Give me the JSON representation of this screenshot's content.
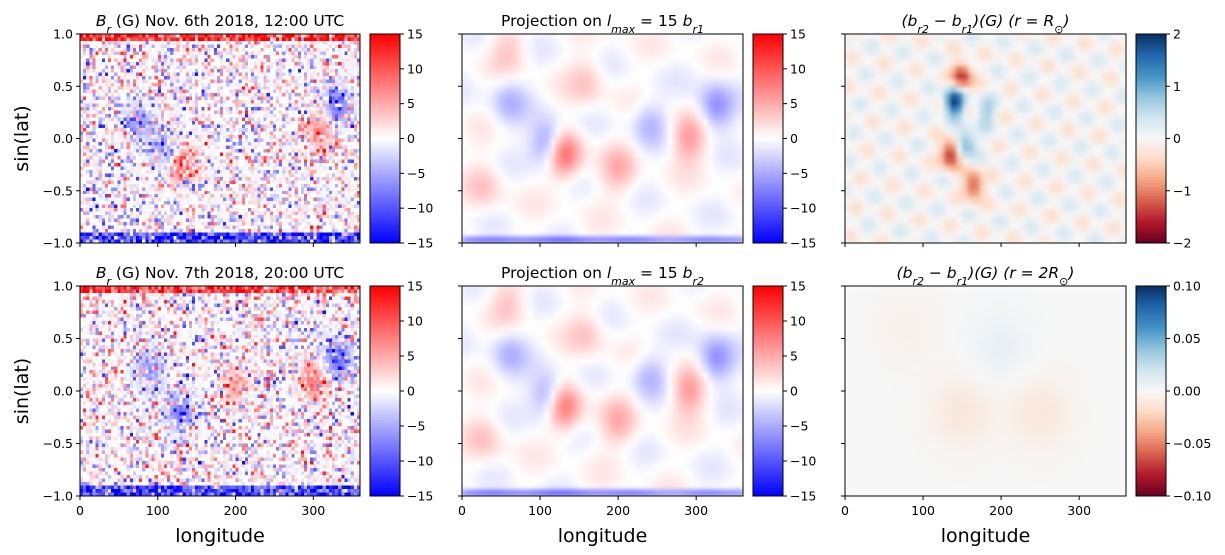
{
  "figure": {
    "description_free": true
  },
  "chart_data": [
    {
      "id": "p11",
      "type": "heatmap",
      "title": "B_r (G) Nov. 6th 2018, 12:00 UTC",
      "title_parts": {
        "sym": "B",
        "sub": "r",
        "rest": " (G) Nov. 6th 2018, 12:00 UTC"
      },
      "xlabel": "",
      "ylabel": "sin(lat)",
      "xlim": [
        0,
        360
      ],
      "ylim": [
        -1.0,
        1.0
      ],
      "xticks": [
        0,
        100,
        200,
        300
      ],
      "xtick_labels": [
        "",
        "",
        "",
        ""
      ],
      "yticks": [
        -1.0,
        -0.5,
        0.0,
        0.5,
        1.0
      ],
      "ytick_labels": [
        "−1.0",
        "−0.5",
        "0.0",
        "0.5",
        "1.0"
      ],
      "colormap": "bwr",
      "colorbar": {
        "range": [
          -15,
          15
        ],
        "ticks": [
          -15,
          -10,
          -5,
          0,
          5,
          10,
          15
        ],
        "tick_labels": [
          "−15",
          "−10",
          "−5",
          "0",
          "5",
          "10",
          "15"
        ]
      },
      "field": "magnetogram",
      "features": [
        {
          "lon": 130,
          "lat": -0.25,
          "amp": 9
        },
        {
          "lon": 110,
          "lat": -0.1,
          "amp": -7
        },
        {
          "lon": 330,
          "lat": 0.3,
          "amp": -9
        },
        {
          "lon": 310,
          "lat": 0.1,
          "amp": 7
        },
        {
          "lon": 75,
          "lat": 0.15,
          "amp": -6
        }
      ]
    },
    {
      "id": "p12",
      "type": "heatmap",
      "title": "Projection on l_max = 15 b_r1",
      "title_parts": {
        "text": "Projection on ",
        "sym": "l",
        "sub": "max",
        "mid": " = 15 ",
        "sym2": "b",
        "sub2": "r1"
      },
      "xlabel": "",
      "ylabel": "",
      "xlim": [
        0,
        360
      ],
      "ylim": [
        -1.0,
        1.0
      ],
      "xticks": [
        0,
        100,
        200,
        300
      ],
      "xtick_labels": [
        "",
        "",
        "",
        ""
      ],
      "yticks": [
        -1.0,
        -0.5,
        0.0,
        0.5,
        1.0
      ],
      "ytick_labels": [
        "",
        "",
        "",
        "",
        ""
      ],
      "colormap": "bwr",
      "colorbar": {
        "range": [
          -15,
          15
        ],
        "ticks": [
          -15,
          -10,
          -5,
          0,
          5,
          10,
          15
        ],
        "tick_labels": [
          "−15",
          "−10",
          "−5",
          "0",
          "5",
          "10",
          "15"
        ]
      },
      "field": "smooth",
      "features": [
        {
          "lon": 130,
          "lat": -0.15,
          "amp": 10
        },
        {
          "lon": 110,
          "lat": -0.05,
          "amp": -8
        },
        {
          "lon": 60,
          "lat": 0.35,
          "amp": -4
        },
        {
          "lon": 160,
          "lat": 0.55,
          "amp": 3
        },
        {
          "lon": 290,
          "lat": 0.0,
          "amp": 6
        },
        {
          "lon": 325,
          "lat": 0.3,
          "amp": -7
        },
        {
          "lon": 240,
          "lat": 0.15,
          "amp": -4
        },
        {
          "lon": 200,
          "lat": -0.3,
          "amp": 4
        },
        {
          "lon": 30,
          "lat": -0.45,
          "amp": 3
        },
        {
          "lon": 60,
          "lat": 0.85,
          "amp": 3
        }
      ]
    },
    {
      "id": "p13",
      "type": "heatmap",
      "title": "(b_r2 − b_r1)(G) (r = R_⊙)",
      "title_parts": {
        "a": "(b",
        "sub1": "r2",
        "b": " − b",
        "sub2": "r1",
        "c": ")(G) (r = R",
        "sub3": "⊙",
        "d": ")"
      },
      "xlabel": "",
      "ylabel": "",
      "xlim": [
        0,
        360
      ],
      "ylim": [
        -1.0,
        1.0
      ],
      "xticks": [
        0,
        100,
        200,
        300
      ],
      "xtick_labels": [
        "",
        "",
        "",
        ""
      ],
      "yticks": [
        -1.0,
        -0.5,
        0.0,
        0.5,
        1.0
      ],
      "ytick_labels": [
        "",
        "",
        "",
        "",
        ""
      ],
      "colormap": "RdBu",
      "colorbar": {
        "range": [
          -2,
          2
        ],
        "ticks": [
          -2,
          -1,
          0,
          1,
          2
        ],
        "tick_labels": [
          "−2",
          "−1",
          "0",
          "1",
          "2"
        ]
      },
      "field": "diff",
      "features": [
        {
          "lon": 140,
          "lat": 0.35,
          "amp": 2.0
        },
        {
          "lon": 150,
          "lat": 0.6,
          "amp": -1.6
        },
        {
          "lon": 135,
          "lat": -0.15,
          "amp": -1.8
        },
        {
          "lon": 155,
          "lat": -0.05,
          "amp": 1.2
        },
        {
          "lon": 165,
          "lat": -0.45,
          "amp": -1.5
        },
        {
          "lon": 180,
          "lat": 0.25,
          "amp": 0.7
        }
      ]
    },
    {
      "id": "p21",
      "type": "heatmap",
      "title": "B_r (G) Nov. 7th 2018, 20:00 UTC",
      "title_parts": {
        "sym": "B",
        "sub": "r",
        "rest": " (G) Nov. 7th 2018, 20:00 UTC"
      },
      "xlabel": "longitude",
      "ylabel": "sin(lat)",
      "xlim": [
        0,
        360
      ],
      "ylim": [
        -1.0,
        1.0
      ],
      "xticks": [
        0,
        100,
        200,
        300
      ],
      "xtick_labels": [
        "0",
        "100",
        "200",
        "300"
      ],
      "yticks": [
        -1.0,
        -0.5,
        0.0,
        0.5,
        1.0
      ],
      "ytick_labels": [
        "−1.0",
        "−0.5",
        "0.0",
        "0.5",
        "1.0"
      ],
      "colormap": "bwr",
      "colorbar": {
        "range": [
          -15,
          15
        ],
        "ticks": [
          -15,
          -10,
          -5,
          0,
          5,
          10,
          15
        ],
        "tick_labels": [
          "−15",
          "−10",
          "−5",
          "0",
          "5",
          "10",
          "15"
        ]
      },
      "field": "magnetogram",
      "features": [
        {
          "lon": 130,
          "lat": -0.2,
          "amp": -8
        },
        {
          "lon": 330,
          "lat": 0.3,
          "amp": -9
        },
        {
          "lon": 300,
          "lat": 0.1,
          "amp": 8
        },
        {
          "lon": 90,
          "lat": 0.2,
          "amp": -6
        },
        {
          "lon": 200,
          "lat": 0.05,
          "amp": 5
        }
      ]
    },
    {
      "id": "p22",
      "type": "heatmap",
      "title": "Projection on l_max = 15 b_r2",
      "title_parts": {
        "text": "Projection on ",
        "sym": "l",
        "sub": "max",
        "mid": " = 15 ",
        "sym2": "b",
        "sub2": "r2"
      },
      "xlabel": "longitude",
      "ylabel": "",
      "xlim": [
        0,
        360
      ],
      "ylim": [
        -1.0,
        1.0
      ],
      "xticks": [
        0,
        100,
        200,
        300
      ],
      "xtick_labels": [
        "0",
        "100",
        "200",
        "300"
      ],
      "yticks": [
        -1.0,
        -0.5,
        0.0,
        0.5,
        1.0
      ],
      "ytick_labels": [
        "",
        "",
        "",
        "",
        ""
      ],
      "colormap": "bwr",
      "colorbar": {
        "range": [
          -15,
          15
        ],
        "ticks": [
          -15,
          -10,
          -5,
          0,
          5,
          10,
          15
        ],
        "tick_labels": [
          "−15",
          "−10",
          "−5",
          "0",
          "5",
          "10",
          "15"
        ]
      },
      "field": "smooth",
      "features": [
        {
          "lon": 130,
          "lat": -0.15,
          "amp": 9
        },
        {
          "lon": 110,
          "lat": -0.05,
          "amp": -7
        },
        {
          "lon": 60,
          "lat": 0.35,
          "amp": -4
        },
        {
          "lon": 160,
          "lat": 0.55,
          "amp": 3
        },
        {
          "lon": 290,
          "lat": 0.0,
          "amp": 6
        },
        {
          "lon": 325,
          "lat": 0.3,
          "amp": -7
        },
        {
          "lon": 240,
          "lat": 0.15,
          "amp": -4
        },
        {
          "lon": 200,
          "lat": -0.3,
          "amp": 4
        },
        {
          "lon": 30,
          "lat": -0.45,
          "amp": 3
        },
        {
          "lon": 60,
          "lat": 0.85,
          "amp": 3
        }
      ]
    },
    {
      "id": "p23",
      "type": "heatmap",
      "title": "(b_r2 − b_r1)(G) (r = 2R_⊙)",
      "title_parts": {
        "a": "(b",
        "sub1": "r2",
        "b": " − b",
        "sub2": "r1",
        "c": ")(G) (r = 2R",
        "sub3": "⊙",
        "d": ")"
      },
      "xlabel": "longitude",
      "ylabel": "",
      "xlim": [
        0,
        360
      ],
      "ylim": [
        -1.0,
        1.0
      ],
      "xticks": [
        0,
        100,
        200,
        300
      ],
      "xtick_labels": [
        "0",
        "100",
        "200",
        "300"
      ],
      "yticks": [
        -1.0,
        -0.5,
        0.0,
        0.5,
        1.0
      ],
      "ytick_labels": [
        "",
        "",
        "",
        "",
        ""
      ],
      "colormap": "RdBu",
      "colorbar": {
        "range": [
          -0.1,
          0.1
        ],
        "ticks": [
          -0.1,
          -0.05,
          0.0,
          0.05,
          0.1
        ],
        "tick_labels": [
          "−0.10",
          "−0.05",
          "0.00",
          "0.05",
          "0.10"
        ]
      },
      "field": "faint",
      "features": [
        {
          "lon": 150,
          "lat": -0.2,
          "amp": -0.012
        },
        {
          "lon": 250,
          "lat": -0.2,
          "amp": -0.012
        },
        {
          "lon": 200,
          "lat": 0.4,
          "amp": 0.008
        },
        {
          "lon": 80,
          "lat": 0.6,
          "amp": -0.005
        }
      ]
    }
  ]
}
